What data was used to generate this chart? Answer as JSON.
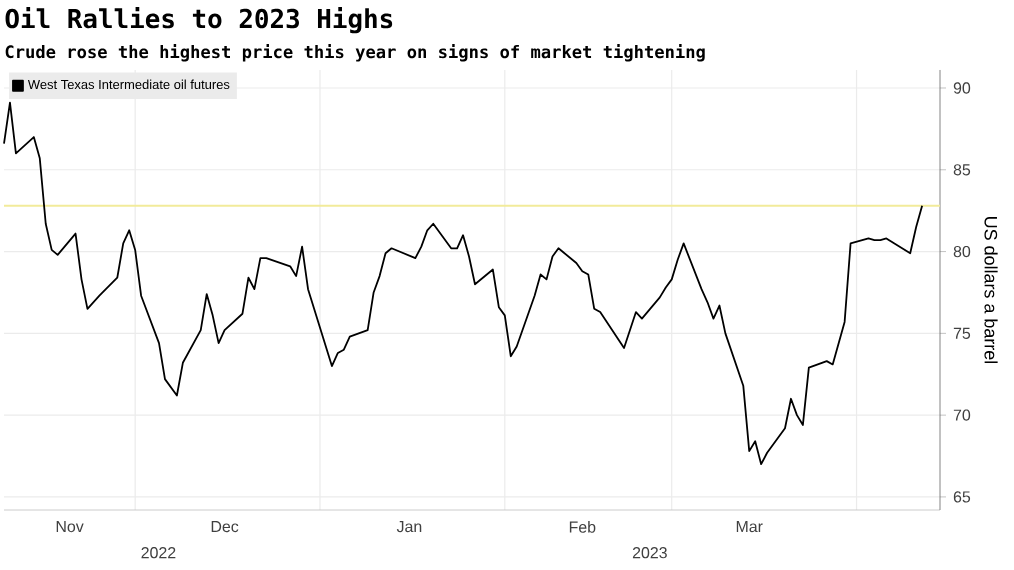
{
  "chart_data": {
    "type": "line",
    "title": "Oil Rallies to 2023 Highs",
    "subtitle": "Crude rose the highest price this year on signs of market tightening",
    "ylabel": "US dollars a barrel",
    "x": [
      "2022-11-09",
      "2022-11-10",
      "2022-11-11",
      "2022-11-14",
      "2022-11-15",
      "2022-11-16",
      "2022-11-17",
      "2022-11-18",
      "2022-11-21",
      "2022-11-22",
      "2022-11-23",
      "2022-11-25",
      "2022-11-28",
      "2022-11-29",
      "2022-11-30",
      "2022-12-01",
      "2022-12-02",
      "2022-12-05",
      "2022-12-06",
      "2022-12-07",
      "2022-12-08",
      "2022-12-09",
      "2022-12-12",
      "2022-12-13",
      "2022-12-14",
      "2022-12-15",
      "2022-12-16",
      "2022-12-19",
      "2022-12-20",
      "2022-12-21",
      "2022-12-22",
      "2022-12-23",
      "2022-12-27",
      "2022-12-28",
      "2022-12-29",
      "2022-12-30",
      "2023-01-03",
      "2023-01-04",
      "2023-01-05",
      "2023-01-06",
      "2023-01-09",
      "2023-01-10",
      "2023-01-11",
      "2023-01-12",
      "2023-01-13",
      "2023-01-17",
      "2023-01-18",
      "2023-01-19",
      "2023-01-20",
      "2023-01-23",
      "2023-01-24",
      "2023-01-25",
      "2023-01-26",
      "2023-01-27",
      "2023-01-30",
      "2023-01-31",
      "2023-02-01",
      "2023-02-02",
      "2023-02-03",
      "2023-02-06",
      "2023-02-07",
      "2023-02-08",
      "2023-02-09",
      "2023-02-10",
      "2023-02-13",
      "2023-02-14",
      "2023-02-15",
      "2023-02-16",
      "2023-02-17",
      "2023-02-21",
      "2023-02-22",
      "2023-02-23",
      "2023-02-24",
      "2023-02-27",
      "2023-02-28",
      "2023-03-01",
      "2023-03-02",
      "2023-03-03",
      "2023-03-06",
      "2023-03-07",
      "2023-03-08",
      "2023-03-09",
      "2023-03-10",
      "2023-03-13",
      "2023-03-14",
      "2023-03-15",
      "2023-03-16",
      "2023-03-17",
      "2023-03-20",
      "2023-03-21",
      "2023-03-22",
      "2023-03-23",
      "2023-03-24",
      "2023-03-27",
      "2023-03-28",
      "2023-03-29",
      "2023-03-30",
      "2023-03-31",
      "2023-04-03",
      "2023-04-04",
      "2023-04-05",
      "2023-04-06",
      "2023-04-10",
      "2023-04-11",
      "2023-04-12"
    ],
    "series": [
      {
        "name": "West Texas Intermediate oil futures",
        "color": "#000000",
        "values": [
          86.6,
          89.1,
          86.0,
          87.0,
          85.7,
          81.7,
          80.1,
          79.8,
          81.1,
          78.3,
          76.5,
          77.3,
          78.4,
          80.5,
          81.3,
          80.1,
          77.3,
          74.4,
          72.2,
          71.7,
          71.2,
          73.2,
          75.2,
          77.4,
          76.1,
          74.4,
          75.2,
          76.2,
          78.4,
          77.7,
          79.6,
          79.6,
          79.1,
          78.5,
          80.3,
          77.7,
          73.0,
          73.8,
          74.0,
          74.8,
          75.2,
          77.5,
          78.5,
          79.9,
          80.2,
          79.6,
          80.3,
          81.3,
          81.7,
          80.2,
          80.2,
          81.0,
          79.7,
          78.0,
          78.9,
          76.6,
          76.1,
          73.6,
          74.2,
          77.3,
          78.6,
          78.3,
          79.7,
          80.2,
          79.3,
          78.8,
          78.6,
          76.5,
          76.3,
          74.1,
          75.2,
          76.3,
          75.9,
          77.2,
          77.8,
          78.3,
          79.5,
          80.5,
          77.7,
          76.9,
          75.9,
          76.7,
          75.0,
          71.8,
          67.8,
          68.4,
          67.0,
          67.7,
          69.2,
          71.0,
          70.0,
          69.4,
          72.9,
          73.3,
          73.1,
          74.4,
          75.7,
          80.5,
          80.8,
          80.7,
          80.7,
          80.8,
          79.9,
          81.5,
          82.8
        ]
      }
    ],
    "xlim": [
      "2022-11-09",
      "2023-04-15"
    ],
    "xticks": [
      {
        "value": "2022-12-01",
        "label": null
      },
      {
        "value": "2023-01-01",
        "label": null
      },
      {
        "value": "2023-02-01",
        "label": null
      },
      {
        "value": "2023-03-01",
        "label": null
      },
      {
        "value": "2023-04-01",
        "label": null
      },
      {
        "value": "2022-11-20",
        "label": "Nov"
      },
      {
        "value": "2022-12-16",
        "label": "Dec"
      },
      {
        "value": "2023-01-16",
        "label": "Jan"
      },
      {
        "value": "2023-02-14",
        "label": "Feb"
      },
      {
        "value": "2023-03-14",
        "label": "Mar"
      }
    ],
    "ylim": [
      64.2,
      91.1
    ],
    "yticks": [
      65,
      70,
      75,
      80,
      85,
      90
    ],
    "annotations": [
      "2022",
      "2023"
    ],
    "ref_lines": [
      {
        "axis": "y",
        "value": 82.8,
        "color": "#f2eb9a"
      }
    ],
    "grid": true,
    "legend": "top left",
    "marker": "none",
    "line_style": "solid"
  }
}
